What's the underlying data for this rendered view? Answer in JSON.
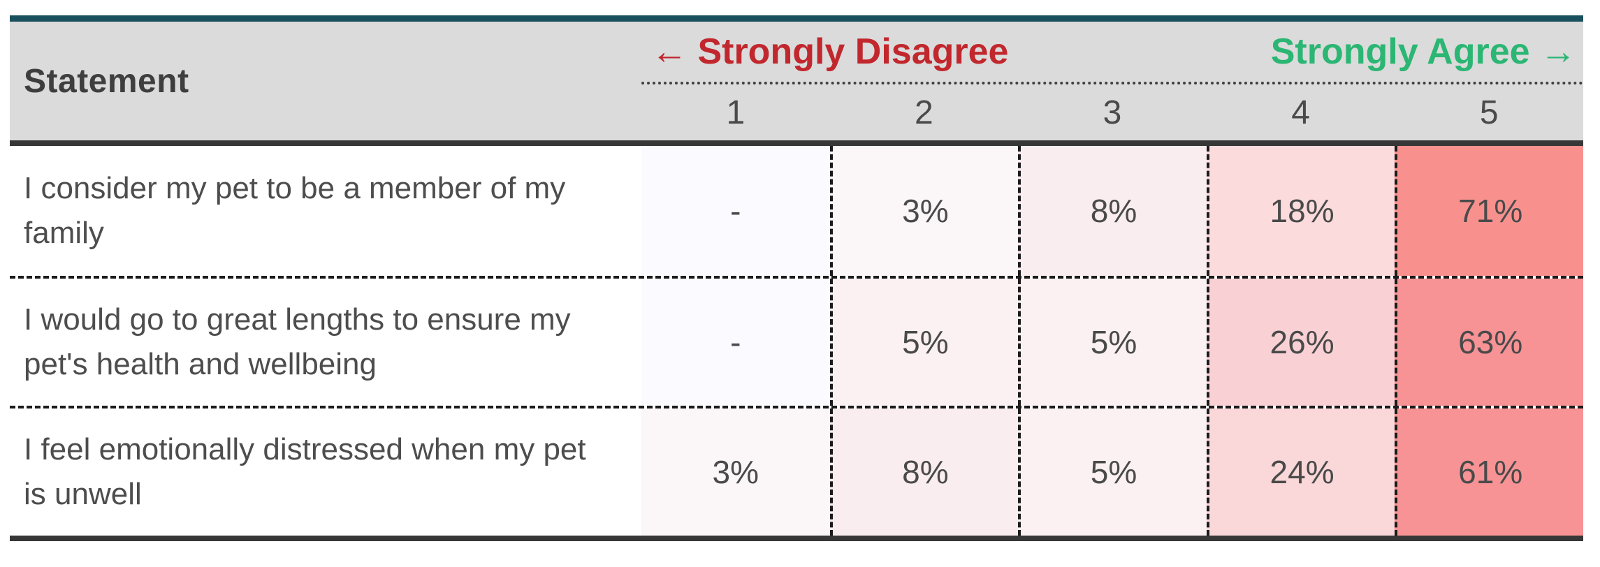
{
  "theme": {
    "top_border": "#1A505E",
    "header_bg": "#DBDBDB",
    "dark_border": "#373737",
    "dash_color": "#1B1B1B",
    "text_color": "#4F4F4F",
    "disagree_color": "#C1272D",
    "agree_color": "#2BB673"
  },
  "header": {
    "statement_label": "Statement",
    "disagree_label": "← Strongly Disagree",
    "agree_label": "Strongly Agree →",
    "levels": [
      "1",
      "2",
      "3",
      "4",
      "5"
    ]
  },
  "rows": [
    {
      "statement": "I consider my pet to be a member of my family",
      "values": [
        "-",
        "3%",
        "8%",
        "18%",
        "71%"
      ],
      "colors": [
        "#FBFAFE",
        "#FBF6F8",
        "#FAEDEF",
        "#FBDBDC",
        "#F8918E"
      ]
    },
    {
      "statement": "I would go to great lengths to ensure my pet's health and wellbeing",
      "values": [
        "-",
        "5%",
        "5%",
        "26%",
        "63%"
      ],
      "colors": [
        "#FBFAFE",
        "#FBF1F3",
        "#FBF1F3",
        "#F9D1D5",
        "#F79295"
      ]
    },
    {
      "statement": "I feel emotionally distressed when my pet is unwell",
      "values": [
        "3%",
        "8%",
        "5%",
        "24%",
        "61%"
      ],
      "colors": [
        "#FBF6F8",
        "#FAEDEF",
        "#FBF1F3",
        "#FAD7D8",
        "#F79394"
      ]
    }
  ],
  "chart_data": {
    "type": "heatmap",
    "row_header": "Statement",
    "x_categories": [
      "1",
      "2",
      "3",
      "4",
      "5"
    ],
    "x_scale_left_label": "← Strongly Disagree",
    "x_scale_right_label": "Strongly Agree →",
    "series": [
      {
        "name": "I consider my pet to be a member of my family",
        "values": [
          null,
          3,
          8,
          18,
          71
        ],
        "labels": [
          "-",
          "3%",
          "8%",
          "18%",
          "71%"
        ]
      },
      {
        "name": "I would go to great lengths to ensure my pet's health and wellbeing",
        "values": [
          null,
          5,
          5,
          26,
          63
        ],
        "labels": [
          "-",
          "5%",
          "5%",
          "26%",
          "63%"
        ]
      },
      {
        "name": "I feel emotionally distressed when my pet is unwell",
        "values": [
          3,
          8,
          5,
          24,
          61
        ],
        "labels": [
          "3%",
          "8%",
          "5%",
          "24%",
          "61%"
        ]
      }
    ],
    "values_unit": "percent of respondents",
    "color_scale": {
      "min_value_color": "#FBFAFE",
      "max_value_color": "#F8918E"
    },
    "legend": "none",
    "grid": "dashed cell borders"
  }
}
